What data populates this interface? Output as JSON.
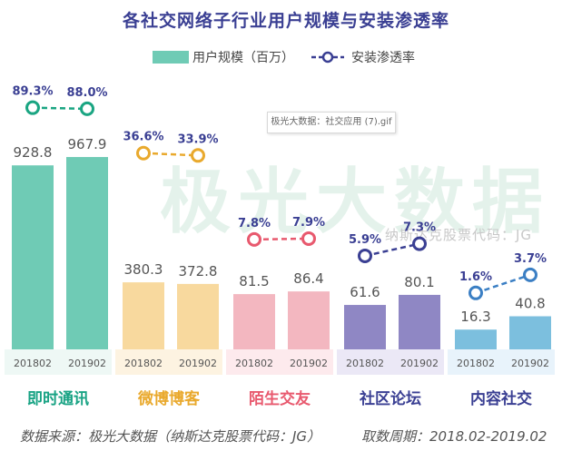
{
  "title": "各社交网络子行业用户规模与安装渗透率",
  "legend": {
    "bar_label": "用户规模（百万）",
    "line_label": "安装渗透率"
  },
  "watermark": {
    "brand": "极光大数据",
    "stock": "纳斯达克股票代码：JG",
    "file_label": "极光大数据：社交应用 (7).gif"
  },
  "footer": {
    "source": "数据来源：极光大数据（纳斯达克股票代码：JG）",
    "period": "取数周期：2018.02-2019.02"
  },
  "chart_data": {
    "type": "bar",
    "title": "各社交网络子行业用户规模与安装渗透率",
    "periods": [
      "201802",
      "201902"
    ],
    "categories": [
      "即时通讯",
      "微博博客",
      "陌生交友",
      "社区论坛",
      "内容社交"
    ],
    "series": [
      {
        "name": "用户规模（百万）",
        "type": "bar",
        "values": [
          [
            928.8,
            967.9
          ],
          [
            380.3,
            372.8
          ],
          [
            81.5,
            86.4
          ],
          [
            61.6,
            80.1
          ],
          [
            16.3,
            40.8
          ]
        ],
        "labels": [
          [
            "928.8",
            "967.9"
          ],
          [
            "380.3",
            "372.8"
          ],
          [
            "81.5",
            "86.4"
          ],
          [
            "61.6",
            "80.1"
          ],
          [
            "16.3",
            "40.8"
          ]
        ]
      },
      {
        "name": "安装渗透率",
        "type": "line",
        "values": [
          [
            89.3,
            88.0
          ],
          [
            36.6,
            33.9
          ],
          [
            7.8,
            7.9
          ],
          [
            5.9,
            7.3
          ],
          [
            1.6,
            3.7
          ]
        ],
        "labels": [
          [
            "89.3%",
            "88.0%"
          ],
          [
            "36.6%",
            "33.9%"
          ],
          [
            "7.8%",
            "7.9%"
          ],
          [
            "5.9%",
            "7.3%"
          ],
          [
            "1.6%",
            "3.7%"
          ]
        ]
      }
    ],
    "colors": {
      "bars": [
        "#6fcbb5",
        "#f8d99e",
        "#f3b7c0",
        "#8f87c4",
        "#7cbfde"
      ],
      "bands": [
        "#eef8f5",
        "#fdf3e1",
        "#fdeaed",
        "#ebe8f6",
        "#e8f3fb"
      ],
      "category_text": [
        "#19a384",
        "#e9a92d",
        "#e8596e",
        "#3a3f93",
        "#3a3f93"
      ],
      "lines": [
        "#1aa582",
        "#e9a92d",
        "#e8596e",
        "#3a3f93",
        "#3b7fc4"
      ],
      "value_text": "#555555",
      "rate_text": "#3a3f93"
    },
    "grid": false,
    "legend_position": "top-center"
  }
}
